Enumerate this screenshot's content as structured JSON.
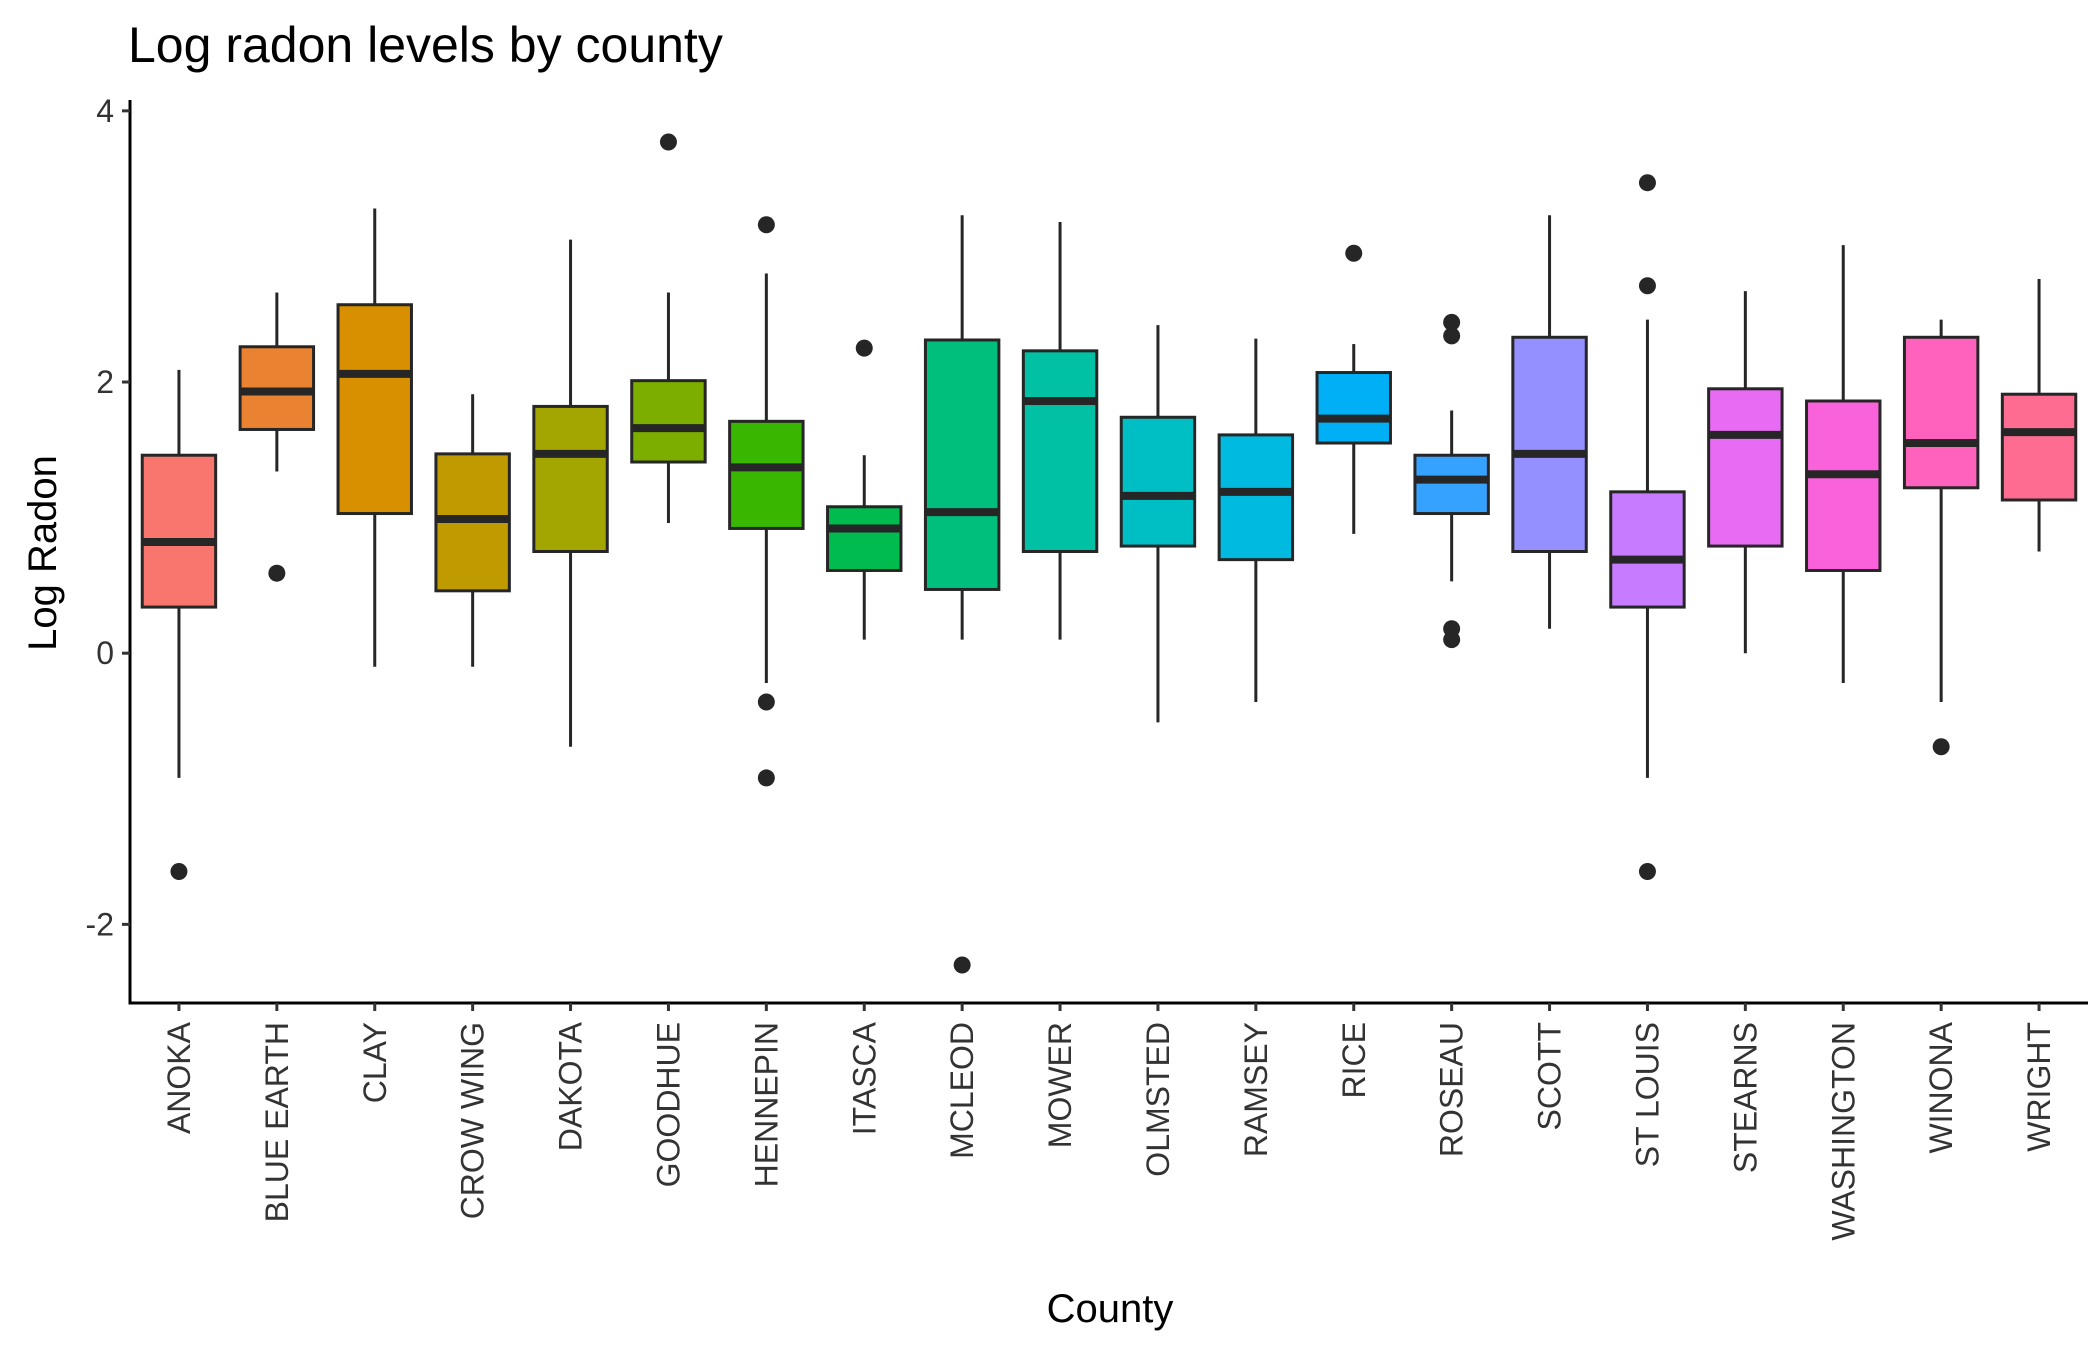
{
  "chart_data": {
    "type": "boxplot",
    "title": "Log radon levels by county",
    "xlabel": "County",
    "ylabel": "Log Radon",
    "ylim": [
      -2.58,
      4.08
    ],
    "yticks": [
      -2,
      0,
      2,
      4
    ],
    "ytick_labels": [
      "-2",
      "0",
      "2",
      "4"
    ],
    "grid": false,
    "legend": "none",
    "categories": [
      "ANOKA",
      "BLUE EARTH",
      "CLAY",
      "CROW WING",
      "DAKOTA",
      "GOODHUE",
      "HENNEPIN",
      "ITASCA",
      "MCLEOD",
      "MOWER",
      "OLMSTED",
      "RAMSEY",
      "RICE",
      "ROSEAU",
      "SCOTT",
      "ST LOUIS",
      "STEARNS",
      "WASHINGTON",
      "WINONA",
      "WRIGHT"
    ],
    "colors": [
      "#F8766D",
      "#EA8331",
      "#D89000",
      "#C09B00",
      "#A3A500",
      "#7CAE00",
      "#39B600",
      "#00BB4E",
      "#00BF7D",
      "#00C1A3",
      "#00BFC4",
      "#00BAE0",
      "#00B0F6",
      "#35A2FF",
      "#9590FF",
      "#C77CFF",
      "#E76BF3",
      "#FA62DB",
      "#FF62BC",
      "#FF6C91"
    ],
    "boxes": [
      {
        "lower_whisker": -0.92,
        "q1": 0.34,
        "median": 0.82,
        "q3": 1.46,
        "upper_whisker": 2.09,
        "outliers": [
          -1.61
        ]
      },
      {
        "lower_whisker": 1.34,
        "q1": 1.65,
        "median": 1.93,
        "q3": 2.26,
        "upper_whisker": 2.66,
        "outliers": [
          0.59
        ]
      },
      {
        "lower_whisker": -0.1,
        "q1": 1.03,
        "median": 2.06,
        "q3": 2.57,
        "upper_whisker": 3.28,
        "outliers": []
      },
      {
        "lower_whisker": -0.1,
        "q1": 0.46,
        "median": 0.99,
        "q3": 1.47,
        "upper_whisker": 1.91,
        "outliers": []
      },
      {
        "lower_whisker": -0.69,
        "q1": 0.75,
        "median": 1.47,
        "q3": 1.82,
        "upper_whisker": 3.05,
        "outliers": []
      },
      {
        "lower_whisker": 0.96,
        "q1": 1.41,
        "median": 1.66,
        "q3": 2.01,
        "upper_whisker": 2.66,
        "outliers": [
          3.77
        ]
      },
      {
        "lower_whisker": -0.22,
        "q1": 0.92,
        "median": 1.37,
        "q3": 1.71,
        "upper_whisker": 2.8,
        "outliers": [
          -0.36,
          -0.92,
          3.16
        ]
      },
      {
        "lower_whisker": 0.1,
        "q1": 0.61,
        "median": 0.92,
        "q3": 1.08,
        "upper_whisker": 1.46,
        "outliers": [
          2.25
        ]
      },
      {
        "lower_whisker": 0.1,
        "q1": 0.47,
        "median": 1.04,
        "q3": 2.31,
        "upper_whisker": 3.23,
        "outliers": [
          -2.3
        ]
      },
      {
        "lower_whisker": 0.1,
        "q1": 0.75,
        "median": 1.86,
        "q3": 2.23,
        "upper_whisker": 3.18,
        "outliers": []
      },
      {
        "lower_whisker": -0.51,
        "q1": 0.79,
        "median": 1.16,
        "q3": 1.74,
        "upper_whisker": 2.42,
        "outliers": []
      },
      {
        "lower_whisker": -0.36,
        "q1": 0.69,
        "median": 1.19,
        "q3": 1.61,
        "upper_whisker": 2.32,
        "outliers": []
      },
      {
        "lower_whisker": 0.88,
        "q1": 1.55,
        "median": 1.73,
        "q3": 2.07,
        "upper_whisker": 2.28,
        "outliers": [
          2.95
        ]
      },
      {
        "lower_whisker": 0.53,
        "q1": 1.03,
        "median": 1.28,
        "q3": 1.46,
        "upper_whisker": 1.79,
        "outliers": [
          0.1,
          0.18,
          2.34,
          2.44
        ]
      },
      {
        "lower_whisker": 0.18,
        "q1": 0.75,
        "median": 1.47,
        "q3": 2.33,
        "upper_whisker": 3.23,
        "outliers": []
      },
      {
        "lower_whisker": -0.92,
        "q1": 0.34,
        "median": 0.69,
        "q3": 1.19,
        "upper_whisker": 2.46,
        "outliers": [
          -1.61,
          2.71,
          3.47
        ]
      },
      {
        "lower_whisker": 0.0,
        "q1": 0.79,
        "median": 1.61,
        "q3": 1.95,
        "upper_whisker": 2.67,
        "outliers": []
      },
      {
        "lower_whisker": -0.22,
        "q1": 0.61,
        "median": 1.32,
        "q3": 1.86,
        "upper_whisker": 3.01,
        "outliers": []
      },
      {
        "lower_whisker": -0.36,
        "q1": 1.22,
        "median": 1.55,
        "q3": 2.33,
        "upper_whisker": 2.46,
        "outliers": [
          -0.69
        ]
      },
      {
        "lower_whisker": 0.75,
        "q1": 1.13,
        "median": 1.63,
        "q3": 1.91,
        "upper_whisker": 2.76,
        "outliers": []
      }
    ]
  }
}
